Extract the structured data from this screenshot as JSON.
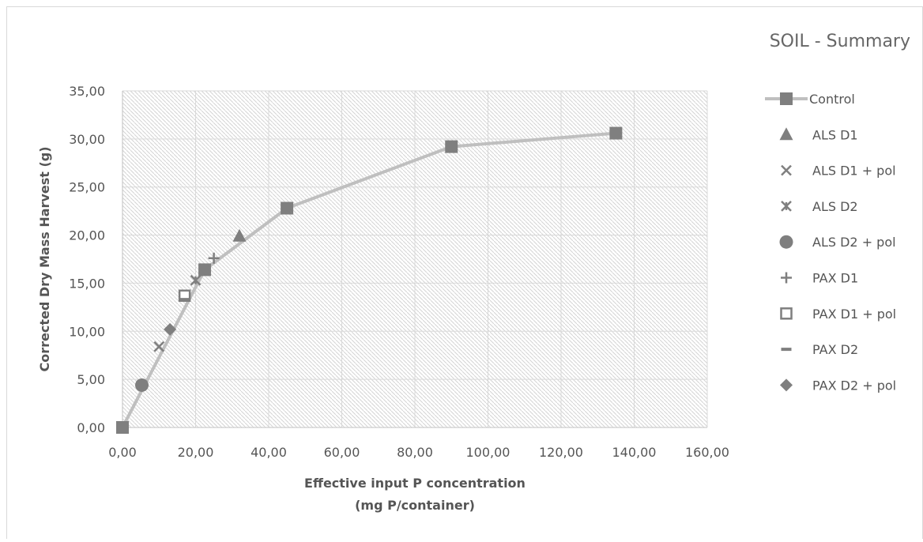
{
  "chart_data": {
    "type": "scatter",
    "title": "SOIL - Summary",
    "xlabel_lines": [
      "Effective input P concentration",
      "(mg P/container)"
    ],
    "ylabel": "Corrected Dry Mass Harvest (g)",
    "xlim": [
      0,
      160
    ],
    "ylim": [
      0,
      35
    ],
    "x_ticks": [
      0,
      20,
      40,
      60,
      80,
      100,
      120,
      140,
      160
    ],
    "y_ticks": [
      0,
      5,
      10,
      15,
      20,
      25,
      30,
      35
    ],
    "x_tick_labels": [
      "0,00",
      "20,00",
      "40,00",
      "60,00",
      "80,00",
      "100,00",
      "120,00",
      "140,00",
      "160,00"
    ],
    "y_tick_labels": [
      "0,00",
      "5,00",
      "10,00",
      "15,00",
      "20,00",
      "25,00",
      "30,00",
      "35,00"
    ],
    "grid": true,
    "legend_position": "right",
    "colors": {
      "series": "#7f7f7f",
      "line": "#bfbfbf",
      "grid": "#d9d9d9",
      "axis": "#bfbfbf"
    },
    "series": [
      {
        "name": "Control",
        "marker": "square",
        "line": true,
        "x": [
          0,
          22.5,
          45,
          90,
          135
        ],
        "y": [
          0,
          16.4,
          22.8,
          29.2,
          30.6
        ]
      },
      {
        "name": "ALS D1",
        "marker": "triangle",
        "line": false,
        "x": [
          32
        ],
        "y": [
          19.9
        ]
      },
      {
        "name": "ALS D1 + pol",
        "marker": "x",
        "line": false,
        "x": [
          10
        ],
        "y": [
          8.4
        ]
      },
      {
        "name": "ALS D2",
        "marker": "star",
        "line": false,
        "x": [
          20
        ],
        "y": [
          15.3
        ]
      },
      {
        "name": "ALS D2 + pol",
        "marker": "circle",
        "line": false,
        "x": [
          5.3
        ],
        "y": [
          4.4
        ]
      },
      {
        "name": "PAX D1",
        "marker": "plus",
        "line": false,
        "x": [
          25
        ],
        "y": [
          17.6
        ]
      },
      {
        "name": "PAX D1 + pol",
        "marker": "open-square",
        "line": false,
        "x": [
          17
        ],
        "y": [
          13.7
        ]
      },
      {
        "name": "PAX D2",
        "marker": "dash",
        "line": false,
        "x": [
          17
        ],
        "y": [
          13.3
        ]
      },
      {
        "name": "PAX D2 + pol",
        "marker": "diamond",
        "line": false,
        "x": [
          13
        ],
        "y": [
          10.2
        ]
      }
    ]
  }
}
